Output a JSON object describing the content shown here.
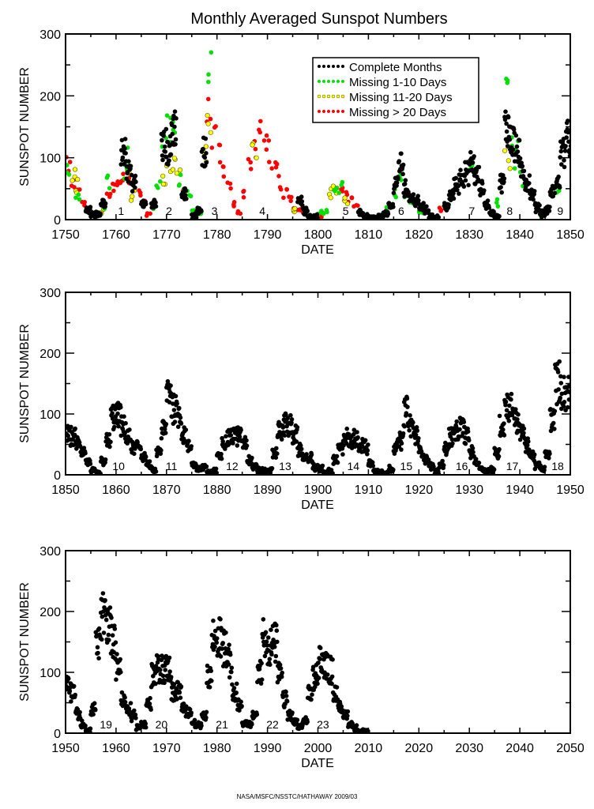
{
  "chart_data": {
    "type": "scatter",
    "title": "Monthly Averaged Sunspot Numbers",
    "credit": "NASA/MSFC/NSSTC/HATHAWAY 2009/03",
    "legend": {
      "placement": "top-right (first panel)",
      "entries": [
        {
          "label": "Complete Months",
          "color": "#000000",
          "edge": "#000000"
        },
        {
          "label": "Missing 1-10 Days",
          "color": "#00e000",
          "edge": "#00e000"
        },
        {
          "label": "Missing 11-20 Days",
          "color": "#ffff00",
          "edge": "#555500"
        },
        {
          "label": "Missing > 20 Days",
          "color": "#ff0000",
          "edge": "#ff0000"
        }
      ]
    },
    "panels": [
      {
        "xlabel": "DATE",
        "ylabel": "SUNSPOT NUMBER",
        "xlim": [
          1750,
          1850
        ],
        "ylim": [
          0,
          300
        ],
        "xticks": [
          "1750",
          "1760",
          "1770",
          "1780",
          "1790",
          "1800",
          "1810",
          "1820",
          "1830",
          "1840",
          "1850"
        ],
        "yticks": [
          "0",
          "100",
          "200",
          "300"
        ],
        "cycles": [
          {
            "label": "1",
            "year": 1761
          },
          {
            "label": "2",
            "year": 1770.5
          },
          {
            "label": "3",
            "year": 1779.5
          },
          {
            "label": "4",
            "year": 1789
          },
          {
            "label": "5",
            "year": 1805.5
          },
          {
            "label": "6",
            "year": 1816.5
          },
          {
            "label": "7",
            "year": 1830.5
          },
          {
            "label": "8",
            "year": 1838
          },
          {
            "label": "9",
            "year": 1848
          }
        ],
        "series_by_quality": [
          {
            "name": "Missing > 20 Days",
            "years": [
              1750,
              1751,
              1752,
              1753,
              1758,
              1759,
              1760,
              1761,
              1762,
              1764,
              1765,
              1766,
              1778,
              1779,
              1780,
              1781,
              1782,
              1783,
              1784,
              1785,
              1786,
              1787,
              1788,
              1789,
              1790,
              1791,
              1792,
              1793,
              1794,
              1795,
              1796,
              1797,
              1800,
              1804,
              1805,
              1806,
              1807,
              1824
            ],
            "values": [
              85,
              60,
              45,
              30,
              40,
              55,
              65,
              70,
              65,
              45,
              25,
              8,
              170,
              130,
              110,
              80,
              55,
              30,
              10,
              40,
              90,
              130,
              150,
              130,
              105,
              80,
              60,
              45,
              30,
              20,
              15,
              10,
              8,
              48,
              42,
              30,
              20,
              18
            ]
          },
          {
            "name": "Missing 11-20 Days",
            "years": [
              1751,
              1752,
              1757,
              1762,
              1763,
              1769,
              1770,
              1771,
              1772,
              1773,
              1777,
              1778,
              1787,
              1795,
              1802,
              1803,
              1805,
              1837,
              1838
            ],
            "values": [
              70,
              55,
              15,
              70,
              40,
              75,
              95,
              100,
              70,
              45,
              95,
              160,
              110,
              15,
              40,
              45,
              35,
              120,
              100
            ]
          },
          {
            "name": "Missing 1-10 Days",
            "years": [
              1750,
              1752,
              1757,
              1758,
              1761,
              1762,
              1767,
              1768,
              1769,
              1770,
              1771,
              1772,
              1774,
              1775,
              1776,
              1778,
              1800,
              1801,
              1803,
              1804,
              1813,
              1815,
              1816,
              1817,
              1818,
              1820,
              1830,
              1835,
              1837,
              1838,
              1839,
              1840,
              1844,
              1847
            ],
            "values": [
              75,
              40,
              20,
              60,
              80,
              100,
              20,
              60,
              110,
              155,
              130,
              60,
              40,
              15,
              10,
              240,
              10,
              15,
              45,
              50,
              15,
              45,
              70,
              40,
              30,
              15,
              80,
              30,
              200,
              150,
              110,
              65,
              5,
              45
            ]
          },
          {
            "name": "Complete Months",
            "years": [
              1754,
              1755,
              1756,
              1757,
              1761,
              1762,
              1763,
              1765,
              1767,
              1769,
              1770,
              1771,
              1773,
              1775,
              1776,
              1777,
              1796,
              1797,
              1798,
              1799,
              1808,
              1809,
              1810,
              1811,
              1812,
              1813,
              1814,
              1815,
              1816,
              1817,
              1818,
              1819,
              1820,
              1821,
              1822,
              1823,
              1825,
              1826,
              1827,
              1828,
              1829,
              1830,
              1831,
              1832,
              1833,
              1834,
              1835,
              1836,
              1837,
              1838,
              1839,
              1840,
              1841,
              1842,
              1843,
              1844,
              1845,
              1846,
              1847,
              1848,
              1849,
              1850
            ],
            "values": [
              15,
              8,
              10,
              25,
              105,
              80,
              60,
              25,
              25,
              120,
              110,
              150,
              40,
              5,
              15,
              110,
              30,
              15,
              5,
              5,
              10,
              5,
              3,
              2,
              5,
              10,
              20,
              60,
              90,
              50,
              35,
              30,
              20,
              15,
              5,
              3,
              20,
              40,
              55,
              70,
              75,
              90,
              70,
              50,
              25,
              10,
              5,
              60,
              150,
              130,
              110,
              80,
              60,
              40,
              20,
              10,
              15,
              45,
              60,
              110,
              130,
              100
            ]
          }
        ]
      },
      {
        "xlabel": "DATE",
        "ylabel": "SUNSPOT NUMBER",
        "xlim": [
          1850,
          1950
        ],
        "ylim": [
          0,
          300
        ],
        "xticks": [
          "1850",
          "1860",
          "1870",
          "1880",
          "1890",
          "1900",
          "1910",
          "1920",
          "1930",
          "1940",
          "1950"
        ],
        "yticks": [
          "0",
          "100",
          "200",
          "300"
        ],
        "cycles": [
          {
            "label": "10",
            "year": 1860.5
          },
          {
            "label": "11",
            "year": 1871
          },
          {
            "label": "12",
            "year": 1883
          },
          {
            "label": "13",
            "year": 1893.5
          },
          {
            "label": "14",
            "year": 1907
          },
          {
            "label": "15",
            "year": 1917.5
          },
          {
            "label": "16",
            "year": 1928.5
          },
          {
            "label": "17",
            "year": 1938.5
          },
          {
            "label": "18",
            "year": 1947.5
          }
        ],
        "series_by_quality": [
          {
            "name": "Complete Months",
            "years": [
              1850,
              1851,
              1852,
              1853,
              1854,
              1855,
              1856,
              1857,
              1858,
              1859,
              1860,
              1861,
              1862,
              1863,
              1864,
              1865,
              1866,
              1867,
              1868,
              1869,
              1870,
              1871,
              1872,
              1873,
              1874,
              1875,
              1876,
              1877,
              1878,
              1879,
              1880,
              1881,
              1882,
              1883,
              1884,
              1885,
              1886,
              1887,
              1888,
              1889,
              1890,
              1891,
              1892,
              1893,
              1894,
              1895,
              1896,
              1897,
              1898,
              1899,
              1900,
              1901,
              1902,
              1903,
              1904,
              1905,
              1906,
              1907,
              1908,
              1909,
              1910,
              1911,
              1912,
              1913,
              1914,
              1915,
              1916,
              1917,
              1918,
              1919,
              1920,
              1921,
              1922,
              1923,
              1924,
              1925,
              1926,
              1927,
              1928,
              1929,
              1930,
              1931,
              1932,
              1933,
              1934,
              1935,
              1936,
              1937,
              1938,
              1939,
              1940,
              1941,
              1942,
              1943,
              1944,
              1945,
              1946,
              1947,
              1948,
              1949
            ],
            "values": [
              66,
              62,
              52,
              39,
              21,
              7,
              4,
              23,
              55,
              94,
              96,
              77,
              59,
              44,
              47,
              31,
              16,
              7,
              37,
              74,
              139,
              111,
              102,
              66,
              45,
              17,
              11,
              12,
              3,
              6,
              32,
              54,
              60,
              64,
              64,
              52,
              25,
              13,
              7,
              6,
              7,
              36,
              73,
              85,
              78,
              64,
              42,
              26,
              27,
              12,
              10,
              3,
              5,
              24,
              42,
              63,
              54,
              62,
              48,
              44,
              19,
              6,
              4,
              1,
              10,
              47,
              57,
              104,
              81,
              64,
              38,
              26,
              14,
              6,
              17,
              44,
              64,
              69,
              78,
              65,
              36,
              21,
              11,
              6,
              9,
              36,
              80,
              114,
              110,
              89,
              68,
              48,
              31,
              16,
              10,
              33,
              93,
              152,
              136,
              135
            ]
          }
        ]
      },
      {
        "xlabel": "DATE",
        "ylabel": "SUNSPOT NUMBER",
        "xlim": [
          1950,
          2050
        ],
        "ylim": [
          0,
          300
        ],
        "xticks": [
          "1950",
          "1960",
          "1970",
          "1980",
          "1990",
          "2000",
          "2010",
          "2020",
          "2030",
          "2040",
          "2050"
        ],
        "yticks": [
          "0",
          "100",
          "200",
          "300"
        ],
        "cycles": [
          {
            "label": "19",
            "year": 1958
          },
          {
            "label": "20",
            "year": 1969
          },
          {
            "label": "21",
            "year": 1981
          },
          {
            "label": "22",
            "year": 1991
          },
          {
            "label": "23",
            "year": 2001
          }
        ],
        "series_by_quality": [
          {
            "name": "Complete Months",
            "years": [
              1950,
              1951,
              1952,
              1953,
              1954,
              1955,
              1956,
              1957,
              1958,
              1959,
              1960,
              1961,
              1962,
              1963,
              1964,
              1965,
              1966,
              1967,
              1968,
              1969,
              1970,
              1971,
              1972,
              1973,
              1974,
              1975,
              1976,
              1977,
              1978,
              1979,
              1980,
              1981,
              1982,
              1983,
              1984,
              1985,
              1986,
              1987,
              1988,
              1989,
              1990,
              1991,
              1992,
              1993,
              1994,
              1995,
              1996,
              1997,
              1998,
              1999,
              2000,
              2001,
              2002,
              2003,
              2004,
              2005,
              2006,
              2007,
              2008,
              2009
            ],
            "values": [
              84,
              69,
              31,
              14,
              4,
              38,
              142,
              190,
              185,
              159,
              112,
              54,
              38,
              28,
              10,
              15,
              47,
              94,
              106,
              106,
              105,
              67,
              69,
              38,
              35,
              16,
              13,
              28,
              93,
              155,
              155,
              141,
              116,
              67,
              46,
              18,
              13,
              29,
              100,
              158,
              142,
              146,
              94,
              55,
              30,
              18,
              9,
              21,
              64,
              93,
              120,
              111,
              104,
              64,
              40,
              30,
              15,
              8,
              3,
              2
            ]
          }
        ]
      }
    ]
  }
}
